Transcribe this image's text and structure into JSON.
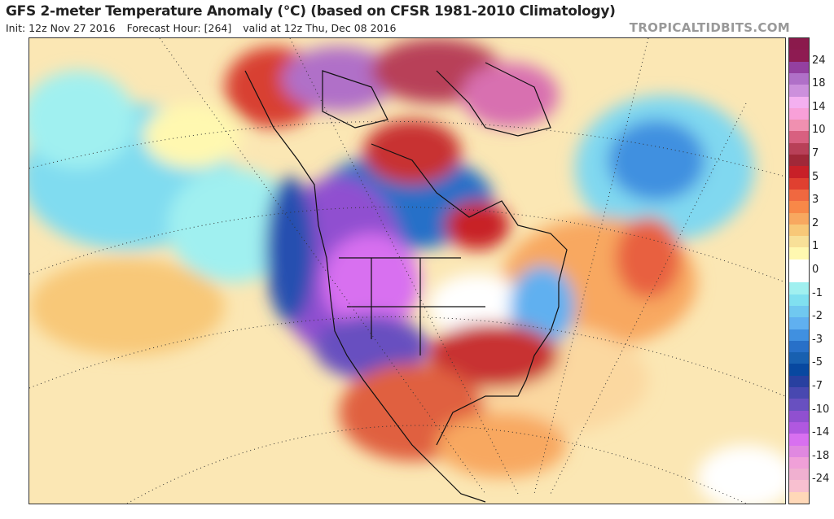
{
  "header": {
    "title": "GFS 2-meter Temperature Anomaly (°C) (based on CFSR 1981-2010 Climatology)",
    "init": "Init: 12z Nov 27 2016",
    "forecast_hour": "Forecast Hour: [264]",
    "valid": "valid at 12z Thu, Dec 08 2016",
    "watermark": "TROPICALTIDBITS.COM"
  },
  "colorbar": {
    "labels": [
      "24",
      "18",
      "14",
      "10",
      "7",
      "5",
      "3",
      "2",
      "1",
      "0",
      "-1",
      "-2",
      "-3",
      "-5",
      "-7",
      "-10",
      "-14",
      "-18",
      "-24"
    ],
    "colors": [
      "#8b1a4c",
      "#8e1b52",
      "#9440a0",
      "#b070c8",
      "#cc90dc",
      "#f4b0f0",
      "#f8a0d8",
      "#f090b0",
      "#d86080",
      "#b84058",
      "#a02838",
      "#c82028",
      "#e04030",
      "#f06840",
      "#f88848",
      "#f8a860",
      "#f8c878",
      "#f8e098",
      "#fff8b0",
      "#ffffff",
      "#ffffff",
      "#a0f0f0",
      "#80e0f0",
      "#70c8f0",
      "#60b0f0",
      "#4090e0",
      "#2870c8",
      "#1860b0",
      "#0848a0",
      "#2840a0",
      "#4848b0",
      "#6850c0",
      "#9050d0",
      "#b058e0",
      "#d870f0",
      "#e088e0",
      "#f0a0d8",
      "#f0b0d0",
      "#f8c0d0",
      "#ffd8b8"
    ]
  },
  "map": {
    "region": "North America",
    "warm_color": "#d84030",
    "cold_color": "#7040c8"
  }
}
